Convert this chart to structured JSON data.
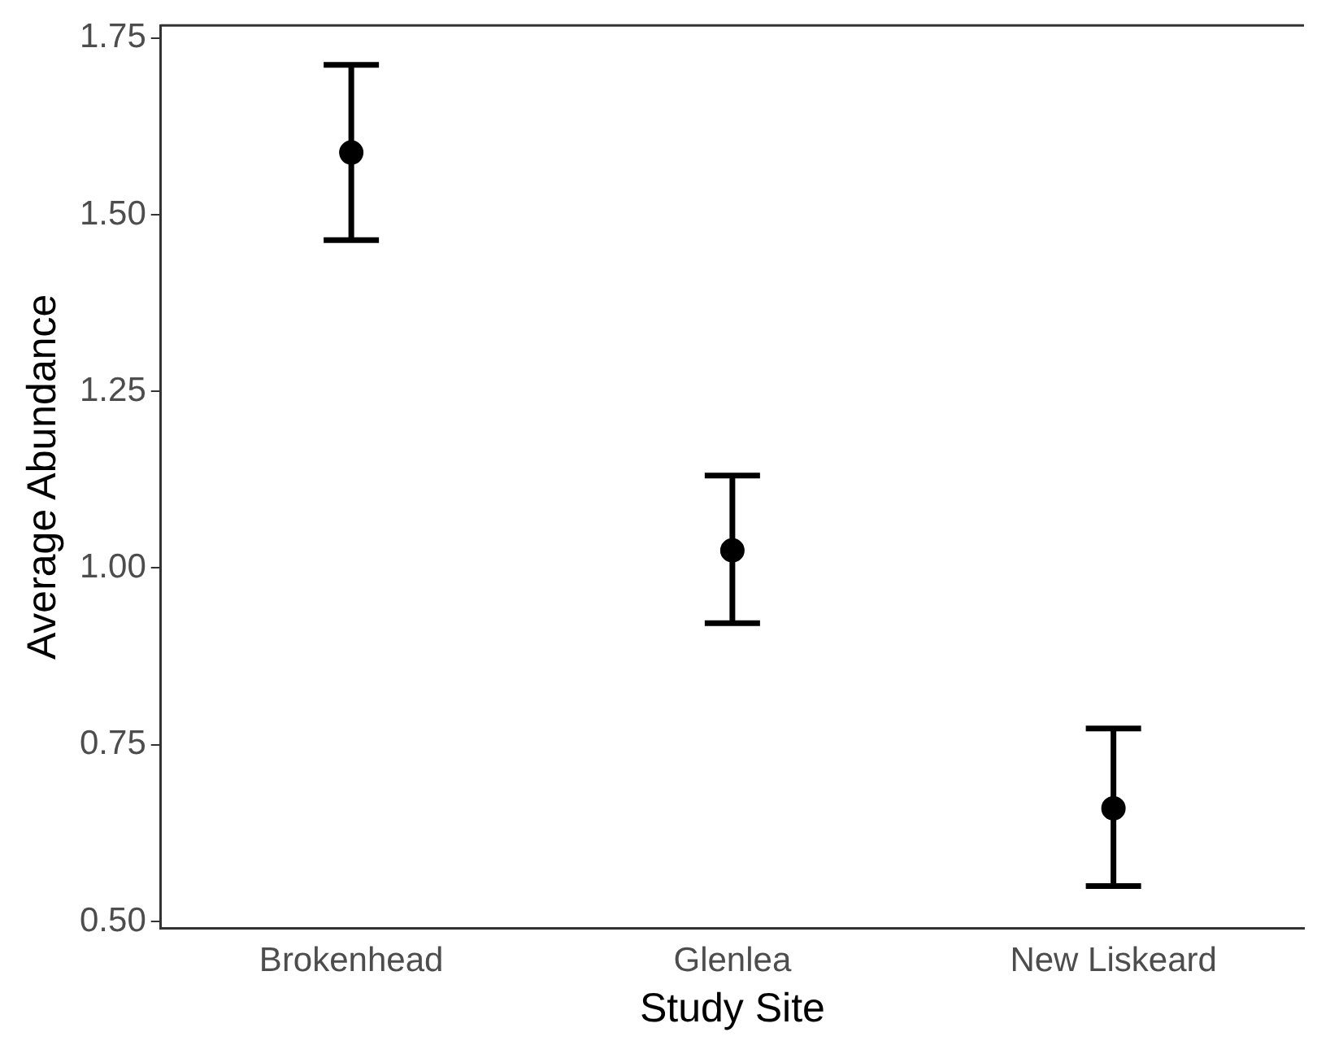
{
  "chart_data": {
    "type": "scatter",
    "xlabel": "Study Site",
    "ylabel": "Average Abundance",
    "categories": [
      "Brokenhead",
      "Glenlea",
      "New Liskeard"
    ],
    "series": [
      {
        "color": "#000000",
        "values": [
          1.588,
          1.025,
          0.66
        ],
        "errors": [
          [
            1.464,
            1.712
          ],
          [
            0.922,
            1.131
          ],
          [
            0.55,
            0.773
          ]
        ]
      }
    ],
    "ylim": [
      0.49,
      1.768
    ],
    "yticks": [
      {
        "value": 0.5,
        "label": "0.50"
      },
      {
        "value": 0.75,
        "label": "0.75"
      },
      {
        "value": 1,
        "label": "1.00"
      },
      {
        "value": 1.25,
        "label": "1.25"
      },
      {
        "value": 1.5,
        "label": "1.50"
      },
      {
        "value": 1.75,
        "label": "1.75"
      }
    ],
    "grid": false,
    "legend": false,
    "marker": "circle"
  }
}
